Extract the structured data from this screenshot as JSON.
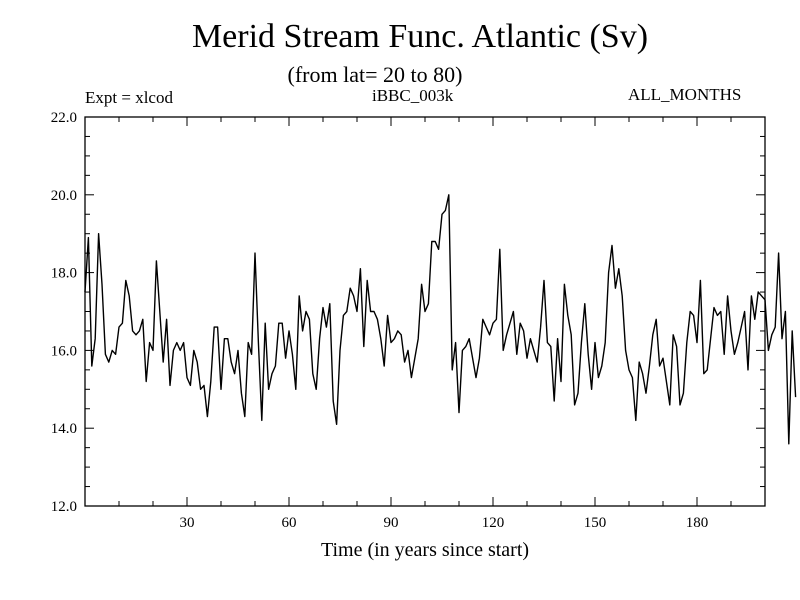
{
  "header": {
    "title": "Merid Stream Func. Atlantic (Sv)",
    "subtitle": "(from lat= 20 to 80)",
    "expt": "Expt = xlcod",
    "run_id": "iBBC_003k",
    "period": "ALL_MONTHS"
  },
  "chart_data": {
    "type": "line",
    "title": "Merid Stream Func. Atlantic (Sv)",
    "subtitle": "(from lat= 20 to 80)",
    "xlabel": "Time (in years since start)",
    "ylabel": "",
    "xlim": [
      0,
      200
    ],
    "ylim": [
      12,
      22
    ],
    "xticks": [
      30,
      60,
      90,
      120,
      150,
      180
    ],
    "yticks": [
      12,
      14,
      16,
      18,
      20,
      22
    ],
    "ytick_labels": [
      "12.0",
      "14.0",
      "16.0",
      "18.0",
      "20.0",
      "22.0"
    ],
    "grid": false,
    "series": [
      {
        "name": "Merid Stream Func. Atlantic",
        "color": "#000000",
        "x_start": 0,
        "x_step": 1,
        "values": [
          17.5,
          18.9,
          15.6,
          16.3,
          19.0,
          17.7,
          15.9,
          15.7,
          16.0,
          15.9,
          16.6,
          16.7,
          17.8,
          17.4,
          16.5,
          16.4,
          16.5,
          16.8,
          15.2,
          16.2,
          16.0,
          18.3,
          17.0,
          15.7,
          16.8,
          15.1,
          16.0,
          16.2,
          16.0,
          16.2,
          15.3,
          15.1,
          16.0,
          15.7,
          15.0,
          15.1,
          14.3,
          15.2,
          16.6,
          16.6,
          15.0,
          16.3,
          16.3,
          15.7,
          15.4,
          16.0,
          14.9,
          14.3,
          16.2,
          15.9,
          18.5,
          16.2,
          14.2,
          16.7,
          15.0,
          15.4,
          15.6,
          16.7,
          16.7,
          15.8,
          16.5,
          15.9,
          15.0,
          17.4,
          16.5,
          17.0,
          16.8,
          15.4,
          15.0,
          16.3,
          17.1,
          16.6,
          17.2,
          14.7,
          14.1,
          16.0,
          16.9,
          17.0,
          17.6,
          17.4,
          17.0,
          18.1,
          16.1,
          17.8,
          17.0,
          17.0,
          16.8,
          16.3,
          15.6,
          16.9,
          16.2,
          16.3,
          16.5,
          16.4,
          15.7,
          16.0,
          15.3,
          15.8,
          16.3,
          17.7,
          17.0,
          17.2,
          18.8,
          18.8,
          18.6,
          19.5,
          19.6,
          20.0,
          15.5,
          16.2,
          14.4,
          16.0,
          16.1,
          16.3,
          15.8,
          15.3,
          15.8,
          16.8,
          16.6,
          16.4,
          16.7,
          16.8,
          18.6,
          16.0,
          16.4,
          16.7,
          17.0,
          15.9,
          16.7,
          16.5,
          15.8,
          16.3,
          16.0,
          15.7,
          16.6,
          17.8,
          16.2,
          16.1,
          14.7,
          16.3,
          15.2,
          17.7,
          16.9,
          16.4,
          14.6,
          14.9,
          16.2,
          17.2,
          15.9,
          15.0,
          16.2,
          15.3,
          15.6,
          16.2,
          18.0,
          18.7,
          17.6,
          18.1,
          17.4,
          16.0,
          15.5,
          15.3,
          14.2,
          15.7,
          15.4,
          14.9,
          15.6,
          16.4,
          16.8,
          15.6,
          15.8,
          15.2,
          14.6,
          16.4,
          16.1,
          14.6,
          14.9,
          16.2,
          17.0,
          16.9,
          16.2,
          17.8,
          15.4,
          15.5,
          16.3,
          17.1,
          16.9,
          17.0,
          15.9,
          17.4,
          16.5,
          15.9,
          16.2,
          16.6,
          17.0,
          15.5,
          17.4,
          16.8,
          17.5,
          17.4,
          17.3,
          16.0,
          16.4,
          16.6,
          18.5,
          16.3,
          17.0,
          13.6,
          16.5,
          14.8
        ]
      }
    ]
  }
}
